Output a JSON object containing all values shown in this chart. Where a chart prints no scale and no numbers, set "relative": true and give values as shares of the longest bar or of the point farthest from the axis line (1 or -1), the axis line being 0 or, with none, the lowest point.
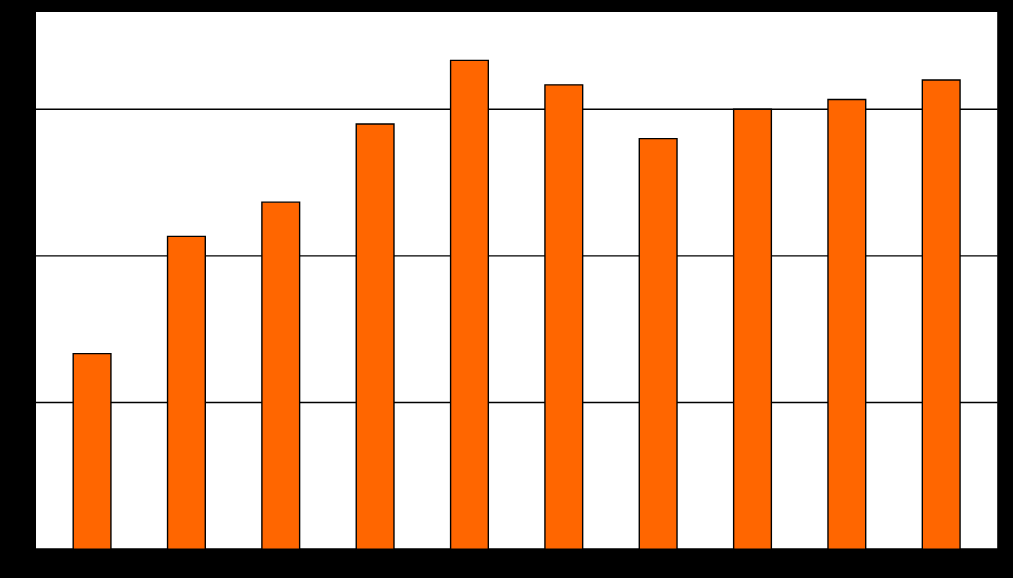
{
  "chart_data": {
    "type": "bar",
    "relative": true,
    "grid": "y",
    "categories": [
      null,
      null,
      null,
      null,
      null,
      null,
      null,
      null,
      null,
      null
    ],
    "values": [
      0.4,
      0.64,
      0.71,
      0.87,
      1,
      0.95,
      0.84,
      0.9,
      0.92,
      0.96
    ],
    "color": "#ff6600"
  }
}
